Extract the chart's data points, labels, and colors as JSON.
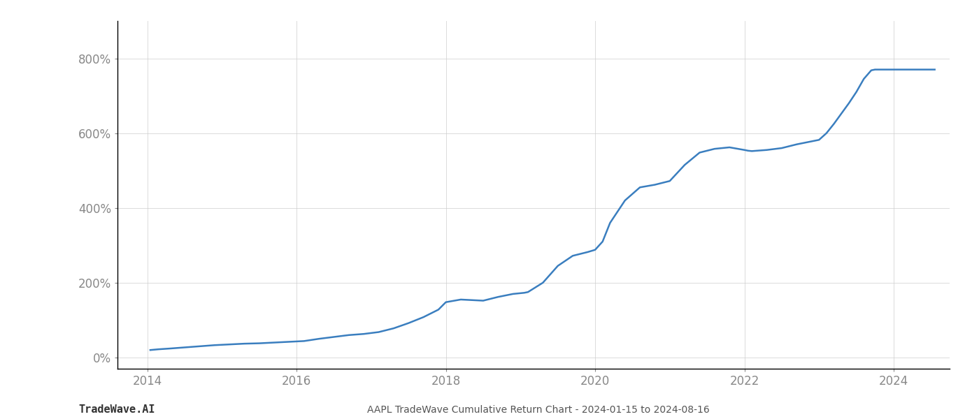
{
  "title": "",
  "xlabel": "",
  "ylabel": "",
  "footer_left": "TradeWave.AI",
  "footer_right": "AAPL TradeWave Cumulative Return Chart - 2024-01-15 to 2024-08-16",
  "line_color": "#3a7ebf",
  "line_width": 1.8,
  "background_color": "#ffffff",
  "grid_color": "#cccccc",
  "x_values": [
    2014.04,
    2014.15,
    2014.3,
    2014.5,
    2014.7,
    2014.9,
    2015.1,
    2015.3,
    2015.5,
    2015.7,
    2015.9,
    2016.1,
    2016.3,
    2016.5,
    2016.7,
    2016.9,
    2017.1,
    2017.3,
    2017.5,
    2017.7,
    2017.9,
    2018.0,
    2018.2,
    2018.5,
    2018.7,
    2018.9,
    2019.0,
    2019.05,
    2019.1,
    2019.3,
    2019.5,
    2019.7,
    2019.9,
    2020.0,
    2020.1,
    2020.2,
    2020.4,
    2020.6,
    2020.8,
    2021.0,
    2021.2,
    2021.4,
    2021.6,
    2021.8,
    2022.0,
    2022.05,
    2022.1,
    2022.3,
    2022.5,
    2022.7,
    2022.9,
    2023.0,
    2023.1,
    2023.2,
    2023.4,
    2023.5,
    2023.6,
    2023.7,
    2023.75,
    2023.8,
    2023.9,
    2024.0,
    2024.2,
    2024.4,
    2024.55
  ],
  "y_values": [
    20,
    22,
    24,
    27,
    30,
    33,
    35,
    37,
    38,
    40,
    42,
    44,
    50,
    55,
    60,
    63,
    68,
    78,
    92,
    108,
    128,
    148,
    155,
    152,
    162,
    170,
    172,
    173,
    175,
    200,
    245,
    272,
    282,
    288,
    310,
    360,
    420,
    455,
    462,
    472,
    515,
    548,
    558,
    562,
    555,
    553,
    552,
    555,
    560,
    570,
    578,
    582,
    600,
    625,
    680,
    710,
    745,
    768,
    770,
    770,
    770,
    770,
    770,
    770,
    770
  ],
  "xlim": [
    2013.6,
    2024.75
  ],
  "ylim": [
    -30,
    900
  ],
  "xticks": [
    2014,
    2016,
    2018,
    2020,
    2022,
    2024
  ],
  "yticks": [
    0,
    200,
    400,
    600,
    800
  ]
}
